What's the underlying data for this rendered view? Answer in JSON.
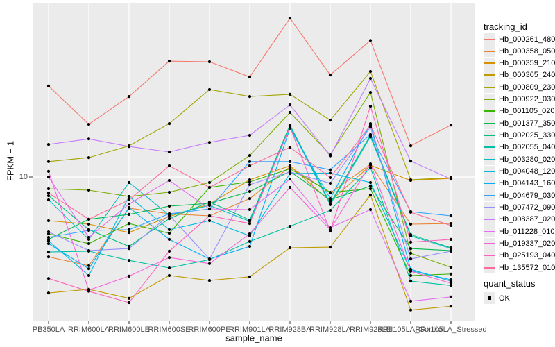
{
  "axes": {
    "y_title": "FPKM + 1",
    "x_title": "sample_name",
    "y_tick": "10"
  },
  "legend": {
    "title": "tracking_id",
    "quant_title": "quant_status",
    "quant_ok": "OK"
  },
  "chart_data": {
    "type": "line",
    "title": "",
    "xlabel": "sample_name",
    "ylabel": "FPKM + 1",
    "y_scale": "log10",
    "y_ticks": [
      10
    ],
    "ylim": [
      0.86,
      191
    ],
    "grid": "ggplot-gray-panel-white-gridlines",
    "legend_position": "right",
    "marker": "black-point-quant-status-OK",
    "marker_color": "#000000",
    "panel_bg": "#ebebeb",
    "x_categories": [
      "PB350LA",
      "RRIM600LA",
      "RRIM600LE",
      "RRIM600SE",
      "RRIM600PE",
      "RRIM901LA",
      "RRIM928BA",
      "RRIM928LA",
      "RRIM928LE",
      "RRII105LA_Control",
      "RRII105LA_Stressed"
    ],
    "series": [
      {
        "name": "Hb_000261_480",
        "color": "#F8766D",
        "values": [
          47.0,
          24.5,
          39.3,
          71.8,
          71.0,
          54.8,
          149,
          56.7,
          102,
          17.0,
          24.2
        ]
      },
      {
        "name": "Hb_000358_050",
        "color": "#EA8331",
        "values": [
          2.57,
          2.21,
          5.88,
          5.35,
          5.16,
          6.93,
          11.9,
          7.62,
          12.4,
          4.48,
          4.53
        ]
      },
      {
        "name": "Hb_000359_210",
        "color": "#D89000",
        "values": [
          4.75,
          4.48,
          3.89,
          5.1,
          6.31,
          9.54,
          12.1,
          6.61,
          12.2,
          9.43,
          9.77
        ]
      },
      {
        "name": "Hb_000365_240",
        "color": "#C09B00",
        "values": [
          1.39,
          1.48,
          1.27,
          1.87,
          1.72,
          1.83,
          3.0,
          3.03,
          7.36,
          1.04,
          1.11
        ]
      },
      {
        "name": "Hb_000809_230",
        "color": "#A3A500",
        "values": [
          13.0,
          13.9,
          17.0,
          24.8,
          44.3,
          39.3,
          40.8,
          26.3,
          60.2,
          9.54,
          9.88
        ]
      },
      {
        "name": "Hb_000922_030",
        "color": "#7CAE00",
        "values": [
          8.18,
          7.99,
          7.18,
          7.71,
          9.1,
          14.4,
          30.0,
          14.6,
          42.2,
          2.73,
          2.15
        ]
      },
      {
        "name": "Hb_001105_020",
        "color": "#39B600",
        "values": [
          3.8,
          3.22,
          4.53,
          3.84,
          8.38,
          9.21,
          11.5,
          7.71,
          8.18,
          1.87,
          1.92
        ]
      },
      {
        "name": "Hb_001377_350",
        "color": "#00BB4E",
        "values": [
          3.46,
          4.87,
          5.29,
          6.09,
          6.39,
          7.8,
          11.0,
          6.77,
          8.58,
          2.96,
          2.86
        ]
      },
      {
        "name": "Hb_002025_330",
        "color": "#00BF7D",
        "values": [
          7.27,
          4.08,
          3.07,
          4.92,
          6.54,
          4.81,
          24.2,
          6.39,
          20.3,
          3.75,
          3.0
        ]
      },
      {
        "name": "Hb_002055_040",
        "color": "#00C1A3",
        "values": [
          2.79,
          2.83,
          2.42,
          2.13,
          2.45,
          3.34,
          4.32,
          5.67,
          11.7,
          1.7,
          1.58
        ]
      },
      {
        "name": "Hb_003280_020",
        "color": "#00BFC4",
        "values": [
          6.77,
          3.46,
          9.1,
          5.22,
          6.16,
          4.7,
          23.7,
          6.24,
          19.8,
          3.67,
          2.96
        ]
      },
      {
        "name": "Hb_004048_120",
        "color": "#00BAE0",
        "values": [
          3.37,
          1.87,
          7.18,
          4.08,
          4.75,
          3.67,
          10.6,
          10.7,
          9.1,
          2.03,
          1.74
        ]
      },
      {
        "name": "Hb_004143_160",
        "color": "#00B0F6",
        "values": [
          3.22,
          2.1,
          5.95,
          3.46,
          2.48,
          3.07,
          22.9,
          6.93,
          24.8,
          2.08,
          1.7
        ]
      },
      {
        "name": "Hb_004679_030",
        "color": "#35A2FF",
        "values": [
          3.58,
          4.03,
          4.08,
          5.35,
          5.81,
          13.0,
          13.0,
          11.3,
          20.6,
          5.54,
          5.16
        ]
      },
      {
        "name": "Hb_007472_090",
        "color": "#9590FF",
        "values": [
          3.93,
          2.86,
          2.96,
          5.22,
          2.48,
          8.78,
          10.9,
          8.99,
          23.4,
          2.48,
          2.83
        ]
      },
      {
        "name": "Hb_008387_020",
        "color": "#C77CFF",
        "values": [
          17.4,
          19.1,
          16.8,
          15.3,
          18.0,
          20.3,
          34.1,
          14.3,
          53.5,
          13.1,
          9.65
        ]
      },
      {
        "name": "Hb_011228_010",
        "color": "#E76BF3",
        "values": [
          10.0,
          3.58,
          6.31,
          9.43,
          5.81,
          5.74,
          9.65,
          4.22,
          5.74,
          1.21,
          1.3
        ]
      },
      {
        "name": "Hb_019337_020",
        "color": "#FA62DB",
        "values": [
          11.0,
          1.46,
          1.85,
          2.54,
          2.29,
          3.8,
          8.38,
          4.08,
          12.5,
          2.01,
          1.64
        ]
      },
      {
        "name": "Hb_025193_040",
        "color": "#FF62BC",
        "values": [
          1.78,
          1.43,
          1.18,
          2.83,
          5.16,
          4.53,
          23.4,
          3.98,
          33.3,
          3.3,
          3.46
        ]
      },
      {
        "name": "Hb_135572_010",
        "color": "#FF6A98",
        "values": [
          7.62,
          4.87,
          6.77,
          12.1,
          8.38,
          12.1,
          16.6,
          9.88,
          24.2,
          5.48,
          4.38
        ]
      }
    ],
    "quant_status_series": [
      {
        "label": "OK",
        "applies_to": "all points"
      }
    ]
  }
}
